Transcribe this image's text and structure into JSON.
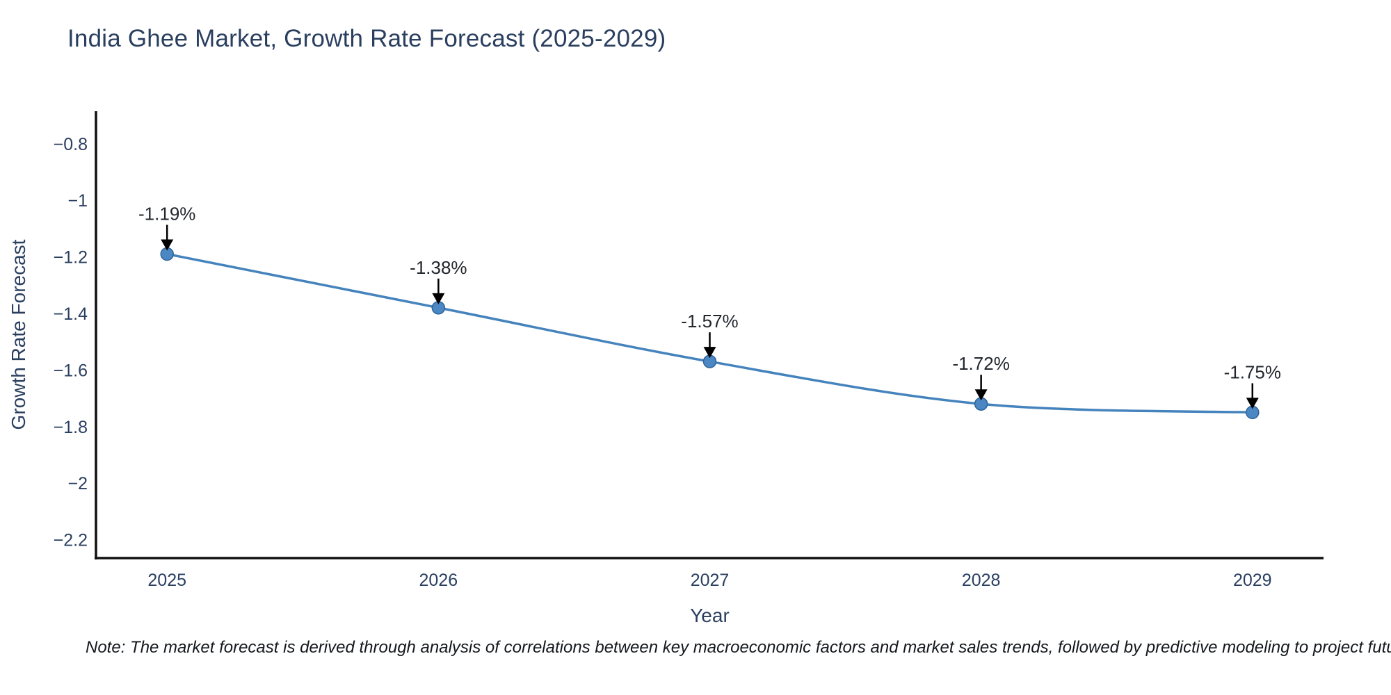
{
  "page": {
    "background_color": "#ffffff"
  },
  "chart_data": {
    "type": "line",
    "title": "India Ghee Market, Growth Rate Forecast (2025-2029)",
    "xlabel": "Year",
    "ylabel": "Growth Rate Forecast",
    "line_shape": "spline",
    "grid": false,
    "legend": "none",
    "x": [
      2025,
      2026,
      2027,
      2028,
      2029
    ],
    "series": [
      {
        "name": "Growth Rate Forecast",
        "values": [
          -1.19,
          -1.38,
          -1.57,
          -1.72,
          -1.75
        ],
        "point_labels": [
          "-1.19%",
          "-1.38%",
          "-1.57%",
          "-1.72%",
          "-1.75%"
        ],
        "line_color": "#4583bd",
        "marker_color": "#4b87c3",
        "marker_edge_color": "#2d6499"
      }
    ],
    "x_tick_labels": [
      "2025",
      "2026",
      "2027",
      "2028",
      "2029"
    ],
    "y_ticks": [
      -0.8,
      -1.0,
      -1.2,
      -1.4,
      -1.6,
      -1.8,
      -2.0,
      -2.2
    ],
    "y_tick_labels": [
      "−0.8",
      "−1",
      "−1.2",
      "−1.4",
      "−1.6",
      "−1.8",
      "−2",
      "−2.2"
    ],
    "xlim": [
      2024.738,
      2029.262
    ],
    "ylim": [
      -2.265,
      -0.685
    ],
    "axis_line_color": "#111111",
    "tick_text_color": "#2a3f5f",
    "axis_title_color": "#2a3f5f",
    "annotation_text_color": "#22272e",
    "annotation_arrow_color": "#000000"
  },
  "footnote": {
    "text": "Note: The market forecast is derived through analysis of correlations between key macroeconomic factors and market sales trends, followed by predictive modeling to project future sa"
  }
}
